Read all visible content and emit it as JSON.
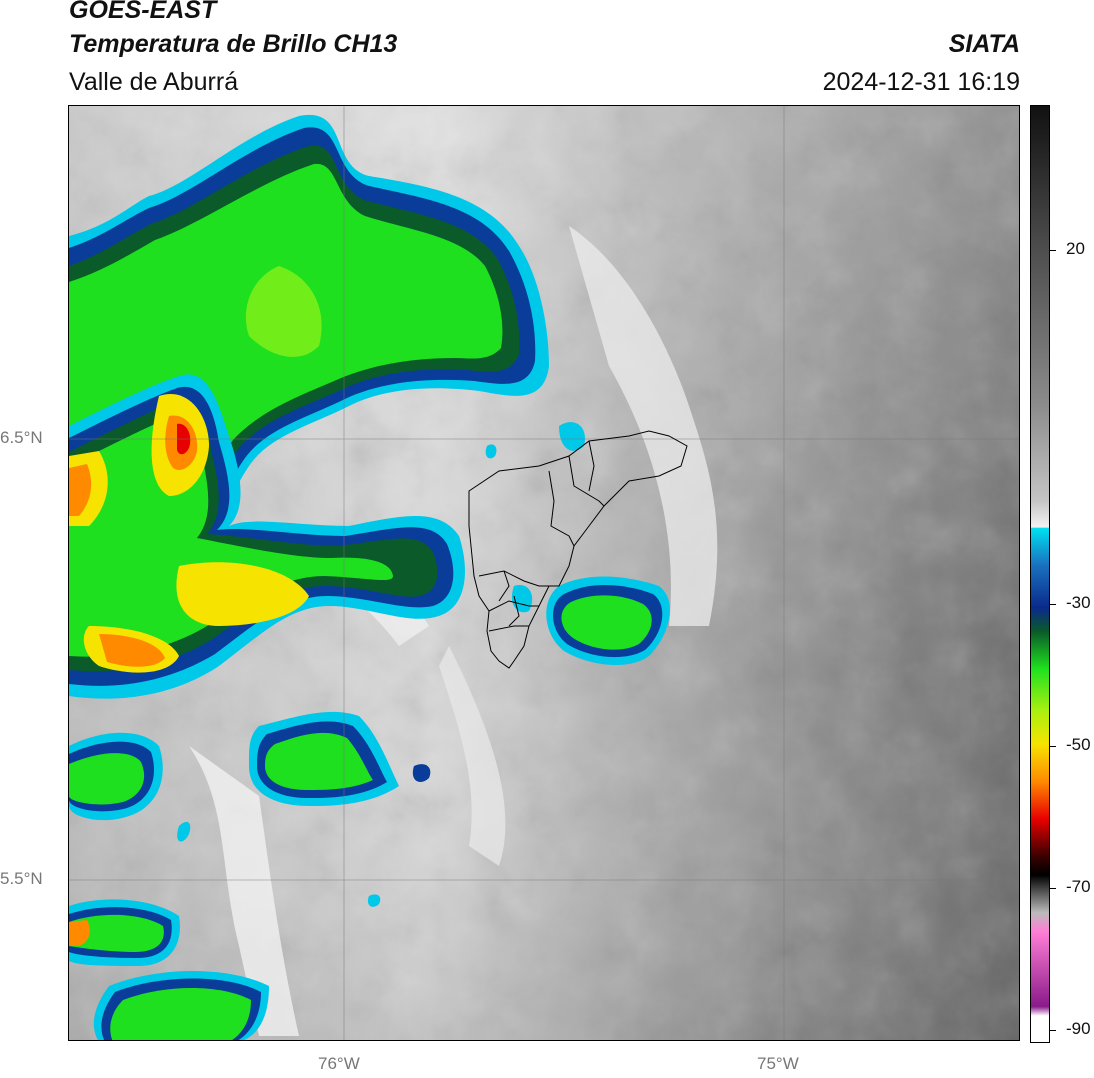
{
  "header": {
    "title_line1": "GOES-EAST",
    "title_line2": "Temperatura de Brillo CH13",
    "subtitle": "Valle de Aburrá",
    "organization": "SIATA",
    "timestamp": "2024-12-31 16:19"
  },
  "map": {
    "lat_labels": [
      "6.5°N",
      "5.5°N"
    ],
    "lon_labels": [
      "76°W",
      "75°W"
    ],
    "graticule": true,
    "boundary": "Valle de Aburrá municipalities outline"
  },
  "colorbar": {
    "tick_labels": [
      "20",
      "-30",
      "-50",
      "-70",
      "-90"
    ],
    "colors": {
      "gray_top": "#111111",
      "gray_mid": "#bdbdbd",
      "white": "#f2f2f2",
      "cyan": "#00c8e8",
      "blue": "#0a3d9a",
      "dark_green": "#0a5a2a",
      "green": "#1fe01f",
      "yellow": "#f6e400",
      "orange": "#ff8a00",
      "red": "#e80000",
      "dark_red": "#3a0000",
      "pink": "#ff7fd6",
      "purple": "#8a1a8a"
    }
  }
}
